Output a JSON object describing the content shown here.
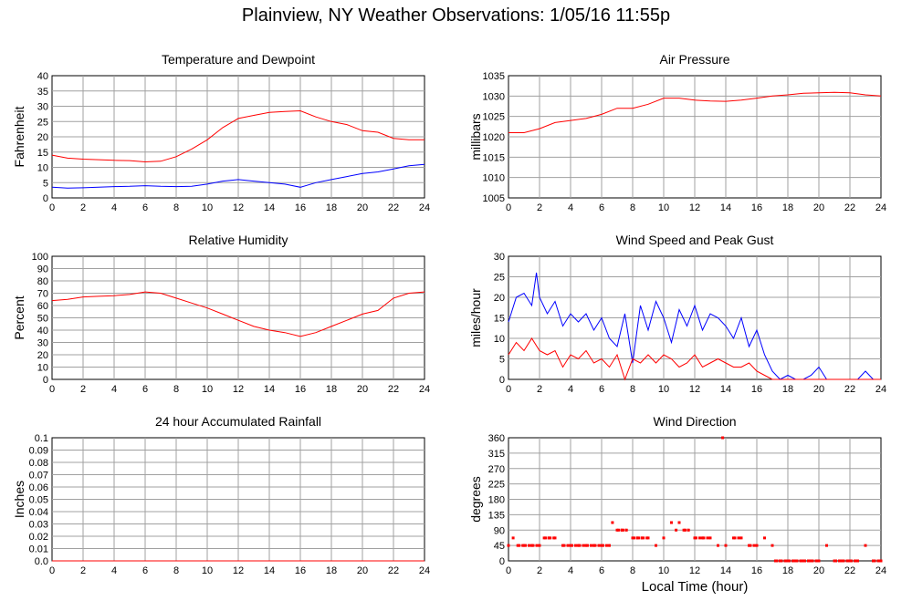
{
  "title": "Plainview, NY Weather Observations: 1/05/16 11:55p",
  "x_axis_label": "Local Time (hour)",
  "x_ticks": [
    "0",
    "2",
    "4",
    "6",
    "8",
    "10",
    "12",
    "14",
    "16",
    "18",
    "20",
    "22",
    "24"
  ],
  "colors": {
    "red": "#ff0000",
    "blue": "#0000ff",
    "grid": "#a0a0a0"
  },
  "chart_data": [
    {
      "id": "temp",
      "type": "line",
      "title": "Temperature and Dewpoint",
      "ylabel": "Fahrenheit",
      "xlim": [
        0,
        24
      ],
      "ylim": [
        0,
        40
      ],
      "yticks": [
        "0",
        "5",
        "10",
        "15",
        "20",
        "25",
        "30",
        "35",
        "40"
      ],
      "series": [
        {
          "color": "#ff0000",
          "x": [
            0,
            1,
            2,
            3,
            4,
            5,
            6,
            7,
            8,
            9,
            10,
            11,
            12,
            13,
            14,
            15,
            16,
            17,
            18,
            19,
            20,
            21,
            22,
            23,
            24
          ],
          "y": [
            14,
            13,
            12.7,
            12.5,
            12.3,
            12.2,
            11.8,
            12,
            13.5,
            16,
            19,
            23,
            26,
            27,
            28,
            28.3,
            28.5,
            26.5,
            25,
            24,
            22,
            21.5,
            19.5,
            19,
            19
          ]
        },
        {
          "color": "#0000ff",
          "x": [
            0,
            1,
            2,
            3,
            4,
            5,
            6,
            7,
            8,
            9,
            10,
            11,
            12,
            13,
            14,
            15,
            16,
            17,
            18,
            19,
            20,
            21,
            22,
            23,
            24
          ],
          "y": [
            3.5,
            3.2,
            3.3,
            3.5,
            3.7,
            3.8,
            4,
            3.8,
            3.7,
            3.8,
            4.5,
            5.5,
            6,
            5.5,
            5,
            4.5,
            3.5,
            5,
            6,
            7,
            8,
            8.5,
            9.5,
            10.5,
            11
          ]
        }
      ]
    },
    {
      "id": "pressure",
      "type": "line",
      "title": "Air Pressure",
      "ylabel": "millibars",
      "xlim": [
        0,
        24
      ],
      "ylim": [
        1005,
        1035
      ],
      "yticks": [
        "1005",
        "1010",
        "1015",
        "1020",
        "1025",
        "1030",
        "1035"
      ],
      "series": [
        {
          "color": "#ff0000",
          "x": [
            0,
            1,
            2,
            3,
            4,
            5,
            6,
            7,
            8,
            9,
            10,
            11,
            12,
            13,
            14,
            15,
            16,
            17,
            18,
            19,
            20,
            21,
            22,
            23,
            24
          ],
          "y": [
            1021,
            1021,
            1022,
            1023.5,
            1024,
            1024.5,
            1025.5,
            1027,
            1027,
            1028,
            1029.5,
            1029.5,
            1029,
            1028.8,
            1028.7,
            1029,
            1029.5,
            1030,
            1030.3,
            1030.7,
            1030.8,
            1030.9,
            1030.8,
            1030.3,
            1030
          ]
        }
      ]
    },
    {
      "id": "humidity",
      "type": "line",
      "title": "Relative Humidity",
      "ylabel": "Percent",
      "xlim": [
        0,
        24
      ],
      "ylim": [
        0,
        100
      ],
      "yticks": [
        "0",
        "10",
        "20",
        "30",
        "40",
        "50",
        "60",
        "70",
        "80",
        "90",
        "100"
      ],
      "series": [
        {
          "color": "#ff0000",
          "x": [
            0,
            1,
            2,
            3,
            4,
            5,
            6,
            7,
            8,
            9,
            10,
            11,
            12,
            13,
            14,
            15,
            16,
            17,
            18,
            19,
            20,
            21,
            22,
            23,
            24
          ],
          "y": [
            64,
            65,
            67,
            67.5,
            68,
            69,
            71,
            70,
            66,
            62,
            58,
            53,
            48,
            43,
            40,
            38,
            35,
            38,
            43,
            48,
            53,
            56,
            66,
            70,
            71
          ]
        }
      ]
    },
    {
      "id": "wind",
      "type": "line",
      "title": "Wind Speed and Peak Gust",
      "ylabel": "miles/hour",
      "xlim": [
        0,
        24
      ],
      "ylim": [
        0,
        30
      ],
      "yticks": [
        "0",
        "5",
        "10",
        "15",
        "20",
        "25",
        "30"
      ],
      "series": [
        {
          "color": "#0000ff",
          "x": [
            0,
            0.5,
            1,
            1.5,
            1.8,
            2,
            2.5,
            3,
            3.5,
            4,
            4.5,
            5,
            5.5,
            6,
            6.5,
            7,
            7.5,
            8,
            8.5,
            9,
            9.5,
            10,
            10.5,
            11,
            11.5,
            12,
            12.5,
            13,
            13.5,
            14,
            14.5,
            15,
            15.5,
            16,
            16.5,
            17,
            17.5,
            18,
            18.5,
            19,
            19.5,
            20,
            20.5,
            21,
            21.5,
            22,
            22.5,
            23,
            23.5,
            24
          ],
          "y": [
            14,
            20,
            21,
            18,
            26,
            20,
            16,
            19,
            13,
            16,
            14,
            16,
            12,
            15,
            10,
            8,
            16,
            4,
            18,
            12,
            19,
            15,
            9,
            17,
            13,
            18,
            12,
            16,
            15,
            13,
            10,
            15,
            8,
            12,
            6,
            2,
            0,
            1,
            0,
            0,
            1,
            3,
            0,
            0,
            0,
            0,
            0,
            2,
            0,
            0
          ]
        },
        {
          "color": "#ff0000",
          "x": [
            0,
            0.5,
            1,
            1.5,
            2,
            2.5,
            3,
            3.5,
            4,
            4.5,
            5,
            5.5,
            6,
            6.5,
            7,
            7.5,
            8,
            8.5,
            9,
            9.5,
            10,
            10.5,
            11,
            11.5,
            12,
            12.5,
            13,
            13.5,
            14,
            14.5,
            15,
            15.5,
            16,
            16.5,
            17,
            17.5,
            18,
            24
          ],
          "y": [
            6,
            9,
            7,
            10,
            7,
            6,
            7,
            3,
            6,
            5,
            7,
            4,
            5,
            3,
            6,
            0,
            5,
            4,
            6,
            4,
            6,
            5,
            3,
            4,
            6,
            3,
            4,
            5,
            4,
            3,
            3,
            4,
            2,
            1,
            0,
            0,
            0,
            0
          ]
        }
      ]
    },
    {
      "id": "rain",
      "type": "line",
      "title": "24 hour Accumulated Rainfall",
      "ylabel": "Inches",
      "xlim": [
        0,
        24
      ],
      "ylim": [
        0,
        0.1
      ],
      "yticks": [
        "0.0",
        "0.01",
        "0.02",
        "0.03",
        "0.04",
        "0.05",
        "0.06",
        "0.07",
        "0.08",
        "0.09",
        "0.1"
      ],
      "series": [
        {
          "color": "#ff0000",
          "x": [
            0,
            24
          ],
          "y": [
            0,
            0
          ]
        }
      ]
    },
    {
      "id": "winddir",
      "type": "scatter",
      "title": "Wind Direction",
      "ylabel": "degrees",
      "xlim": [
        0,
        24
      ],
      "ylim": [
        0,
        360
      ],
      "yticks": [
        "0",
        "45",
        "90",
        "135",
        "180",
        "225",
        "270",
        "315",
        "360"
      ],
      "series": [
        {
          "color": "#ff0000",
          "x": [
            0,
            0.3,
            0.6,
            1,
            1.5,
            2,
            2.3,
            2.6,
            3,
            3.5,
            4,
            4.5,
            5,
            5.5,
            6,
            6.5,
            6.7,
            7,
            7.3,
            7.6,
            8,
            8.3,
            8.6,
            9,
            9.5,
            10,
            10.5,
            10.8,
            11,
            11.3,
            11.6,
            12,
            12.5,
            13,
            13.5,
            13.8,
            14,
            14.5,
            15,
            15.5,
            16,
            16.5,
            17,
            17.2,
            17.5,
            18,
            18.5,
            19,
            19.5,
            20,
            20.5,
            21,
            21.5,
            22,
            22.5,
            23,
            23.5,
            24
          ],
          "y": [
            45,
            67,
            45,
            45,
            45,
            45,
            67,
            67,
            67,
            45,
            45,
            45,
            45,
            45,
            45,
            45,
            112,
            90,
            90,
            90,
            67,
            67,
            67,
            67,
            45,
            67,
            112,
            90,
            112,
            90,
            90,
            67,
            67,
            67,
            45,
            360,
            45,
            67,
            67,
            45,
            45,
            67,
            45,
            0,
            0,
            0,
            0,
            0,
            0,
            0,
            45,
            0,
            0,
            0,
            0,
            45,
            0,
            0
          ]
        }
      ]
    }
  ]
}
